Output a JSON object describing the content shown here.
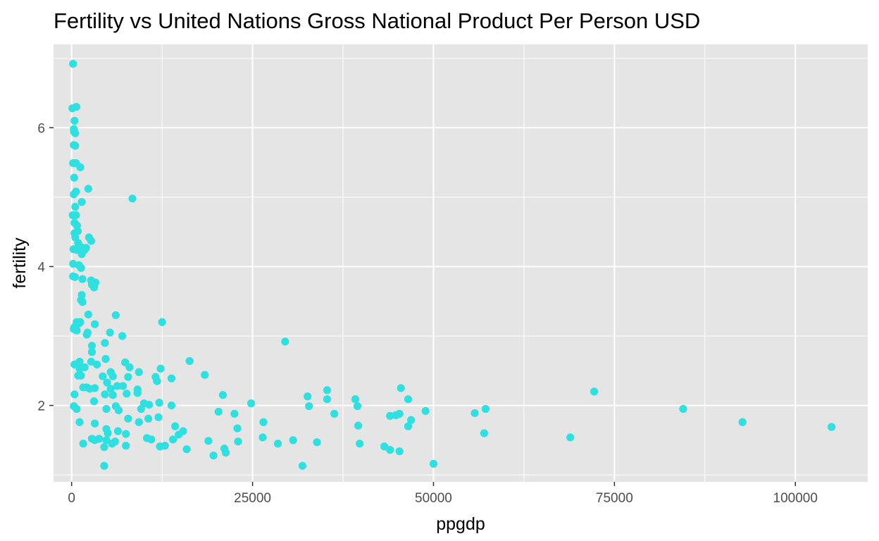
{
  "chart_data": {
    "type": "scatter",
    "title": "Fertility vs United Nations Gross National Product Per Person USD",
    "xlabel": "ppgdp",
    "ylabel": "fertility",
    "xlim": [
      -2500,
      110000
    ],
    "ylim": [
      0.9,
      7.2
    ],
    "x_ticks": [
      0,
      25000,
      50000,
      75000,
      100000
    ],
    "x_tick_labels": [
      "0",
      "25000",
      "50000",
      "75000",
      "100000"
    ],
    "y_ticks": [
      2,
      4,
      6
    ],
    "y_tick_labels": [
      "2",
      "4",
      "6"
    ],
    "grid": true,
    "point_color": "#2ee0e0",
    "panel_color": "#e5e5e5",
    "grid_color": "#ffffff",
    "points": [
      [
        200,
        6.92
      ],
      [
        100,
        6.28
      ],
      [
        650,
        6.3
      ],
      [
        400,
        6.1
      ],
      [
        300,
        5.98
      ],
      [
        350,
        5.94
      ],
      [
        500,
        5.92
      ],
      [
        300,
        5.75
      ],
      [
        500,
        5.74
      ],
      [
        200,
        5.49
      ],
      [
        600,
        5.49
      ],
      [
        1200,
        5.43
      ],
      [
        350,
        5.28
      ],
      [
        600,
        5.08
      ],
      [
        300,
        5.04
      ],
      [
        2300,
        5.12
      ],
      [
        1400,
        4.93
      ],
      [
        8400,
        4.98
      ],
      [
        500,
        4.86
      ],
      [
        150,
        4.74
      ],
      [
        600,
        4.74
      ],
      [
        400,
        4.63
      ],
      [
        750,
        4.59
      ],
      [
        850,
        4.51
      ],
      [
        400,
        4.48
      ],
      [
        500,
        4.42
      ],
      [
        2400,
        4.42
      ],
      [
        2700,
        4.37
      ],
      [
        900,
        4.34
      ],
      [
        250,
        4.25
      ],
      [
        700,
        4.24
      ],
      [
        1300,
        4.28
      ],
      [
        1800,
        4.24
      ],
      [
        2000,
        4.27
      ],
      [
        1400,
        4.18
      ],
      [
        200,
        4.04
      ],
      [
        1000,
        4.02
      ],
      [
        1300,
        3.98
      ],
      [
        200,
        3.86
      ],
      [
        450,
        3.85
      ],
      [
        1500,
        3.82
      ],
      [
        2700,
        3.8
      ],
      [
        3300,
        3.77
      ],
      [
        2800,
        3.74
      ],
      [
        3100,
        3.7
      ],
      [
        1400,
        3.59
      ],
      [
        1300,
        3.52
      ],
      [
        1500,
        3.49
      ],
      [
        2300,
        3.31
      ],
      [
        6100,
        3.3
      ],
      [
        700,
        3.2
      ],
      [
        1000,
        3.18
      ],
      [
        1200,
        3.2
      ],
      [
        12500,
        3.2
      ],
      [
        400,
        3.13
      ],
      [
        300,
        3.1
      ],
      [
        3200,
        3.17
      ],
      [
        700,
        3.08
      ],
      [
        2200,
        3.05
      ],
      [
        2100,
        3.02
      ],
      [
        5300,
        3.05
      ],
      [
        7000,
        3.0
      ],
      [
        29500,
        2.92
      ],
      [
        2800,
        2.86
      ],
      [
        4600,
        2.9
      ],
      [
        2800,
        2.77
      ],
      [
        4700,
        2.67
      ],
      [
        16300,
        2.64
      ],
      [
        1100,
        2.63
      ],
      [
        2700,
        2.63
      ],
      [
        400,
        2.59
      ],
      [
        700,
        2.59
      ],
      [
        3500,
        2.59
      ],
      [
        7400,
        2.62
      ],
      [
        8000,
        2.55
      ],
      [
        1800,
        2.55
      ],
      [
        1100,
        2.53
      ],
      [
        12300,
        2.53
      ],
      [
        5400,
        2.48
      ],
      [
        9300,
        2.48
      ],
      [
        18400,
        2.44
      ],
      [
        900,
        2.43
      ],
      [
        1300,
        2.43
      ],
      [
        4300,
        2.42
      ],
      [
        5700,
        2.42
      ],
      [
        11600,
        2.41
      ],
      [
        7800,
        2.41
      ],
      [
        13800,
        2.39
      ],
      [
        11800,
        2.35
      ],
      [
        4900,
        2.33
      ],
      [
        6300,
        2.28
      ],
      [
        7100,
        2.28
      ],
      [
        1600,
        2.26
      ],
      [
        2100,
        2.26
      ],
      [
        2500,
        2.24
      ],
      [
        3200,
        2.25
      ],
      [
        5400,
        2.24
      ],
      [
        9100,
        2.23
      ],
      [
        9100,
        2.18
      ],
      [
        45500,
        2.25
      ],
      [
        72200,
        2.2
      ],
      [
        35300,
        2.22
      ],
      [
        400,
        2.16
      ],
      [
        4600,
        2.16
      ],
      [
        5700,
        2.15
      ],
      [
        7600,
        2.17
      ],
      [
        20900,
        2.15
      ],
      [
        32600,
        2.13
      ],
      [
        35300,
        2.09
      ],
      [
        39200,
        2.09
      ],
      [
        46500,
        2.09
      ],
      [
        3100,
        2.06
      ],
      [
        10000,
        2.03
      ],
      [
        10700,
        2.01
      ],
      [
        12100,
        2.04
      ],
      [
        24800,
        2.03
      ],
      [
        300,
        1.99
      ],
      [
        6100,
        1.99
      ],
      [
        13800,
        2.0
      ],
      [
        32800,
        1.99
      ],
      [
        39500,
        1.99
      ],
      [
        700,
        1.95
      ],
      [
        4800,
        1.95
      ],
      [
        6500,
        1.93
      ],
      [
        9600,
        1.95
      ],
      [
        20300,
        1.91
      ],
      [
        22500,
        1.88
      ],
      [
        36300,
        1.88
      ],
      [
        45300,
        1.88
      ],
      [
        44800,
        1.86
      ],
      [
        48900,
        1.92
      ],
      [
        55700,
        1.89
      ],
      [
        57200,
        1.95
      ],
      [
        84500,
        1.95
      ],
      [
        7800,
        1.81
      ],
      [
        10600,
        1.81
      ],
      [
        12000,
        1.83
      ],
      [
        26500,
        1.76
      ],
      [
        44000,
        1.85
      ],
      [
        46900,
        1.79
      ],
      [
        1100,
        1.76
      ],
      [
        3200,
        1.74
      ],
      [
        9300,
        1.76
      ],
      [
        14300,
        1.7
      ],
      [
        39600,
        1.71
      ],
      [
        46500,
        1.7
      ],
      [
        92700,
        1.76
      ],
      [
        105000,
        1.69
      ],
      [
        4800,
        1.66
      ],
      [
        6400,
        1.63
      ],
      [
        15400,
        1.63
      ],
      [
        22900,
        1.67
      ],
      [
        57000,
        1.6
      ],
      [
        7500,
        1.59
      ],
      [
        14800,
        1.58
      ],
      [
        5000,
        1.6
      ],
      [
        26400,
        1.54
      ],
      [
        68900,
        1.54
      ],
      [
        10400,
        1.53
      ],
      [
        3800,
        1.52
      ],
      [
        11000,
        1.51
      ],
      [
        14000,
        1.51
      ],
      [
        4800,
        1.5
      ],
      [
        6000,
        1.48
      ],
      [
        3200,
        1.5
      ],
      [
        2800,
        1.52
      ],
      [
        18900,
        1.49
      ],
      [
        23000,
        1.48
      ],
      [
        30600,
        1.5
      ],
      [
        33900,
        1.47
      ],
      [
        1600,
        1.45
      ],
      [
        5600,
        1.45
      ],
      [
        28500,
        1.45
      ],
      [
        39800,
        1.45
      ],
      [
        12200,
        1.41
      ],
      [
        12900,
        1.42
      ],
      [
        43200,
        1.41
      ],
      [
        7500,
        1.42
      ],
      [
        4500,
        1.4
      ],
      [
        21100,
        1.38
      ],
      [
        15900,
        1.37
      ],
      [
        44000,
        1.36
      ],
      [
        45300,
        1.34
      ],
      [
        21300,
        1.32
      ],
      [
        19600,
        1.28
      ],
      [
        4500,
        1.13
      ],
      [
        31900,
        1.13
      ],
      [
        50000,
        1.16
      ]
    ]
  }
}
